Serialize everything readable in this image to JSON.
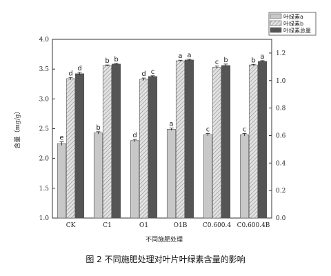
{
  "chart_data": {
    "type": "bar",
    "categories": [
      "CK",
      "C1",
      "O1",
      "O1B",
      "C0.600.4",
      "C0.600.4B"
    ],
    "series": [
      {
        "name": "叶绿素a",
        "axis": "left",
        "color": "#c8c8c8",
        "pattern": "solid",
        "values": [
          2.25,
          2.43,
          2.3,
          2.49,
          2.4,
          2.4
        ],
        "errors": [
          0.03,
          0.02,
          0.02,
          0.02,
          0.02,
          0.02
        ],
        "letters": [
          "e",
          "b",
          "d",
          "a",
          "c",
          "c"
        ]
      },
      {
        "name": "叶绿素b",
        "axis": "left",
        "color": "#d8d8d8",
        "pattern": "hatch",
        "values": [
          3.34,
          3.56,
          3.33,
          3.64,
          3.53,
          3.57
        ],
        "errors": [
          0.02,
          0.01,
          0.02,
          0.01,
          0.02,
          0.01
        ],
        "letters": [
          "d",
          "b",
          "d",
          "a",
          "c",
          "b"
        ]
      },
      {
        "name": "叶绿素总量",
        "axis": "right",
        "color": "#555555",
        "pattern": "solid",
        "values": [
          1.05,
          1.12,
          1.03,
          1.15,
          1.11,
          1.14
        ],
        "errors": [
          0.01,
          0.005,
          0.005,
          0.005,
          0.01,
          0.005
        ],
        "letters": [
          "d",
          "b",
          "c",
          "a",
          "b",
          "a"
        ]
      }
    ],
    "xlabel": "不同施肥处理",
    "ylabel": "含量（mg/g）",
    "ylim": [
      1.0,
      4.0
    ],
    "y2lim": [
      0.0,
      1.3
    ],
    "yticks": [
      "1.0",
      "1.5",
      "2.0",
      "2.5",
      "3.0",
      "3.5",
      "4.0"
    ],
    "y2ticks": [
      "0.0",
      "0.2",
      "0.4",
      "0.6",
      "0.8",
      "1.0",
      "1.2"
    ],
    "legend_position": "top-right",
    "grid": false
  },
  "caption": "图 2  不同施肥处理对叶片叶绿素含量的影响"
}
